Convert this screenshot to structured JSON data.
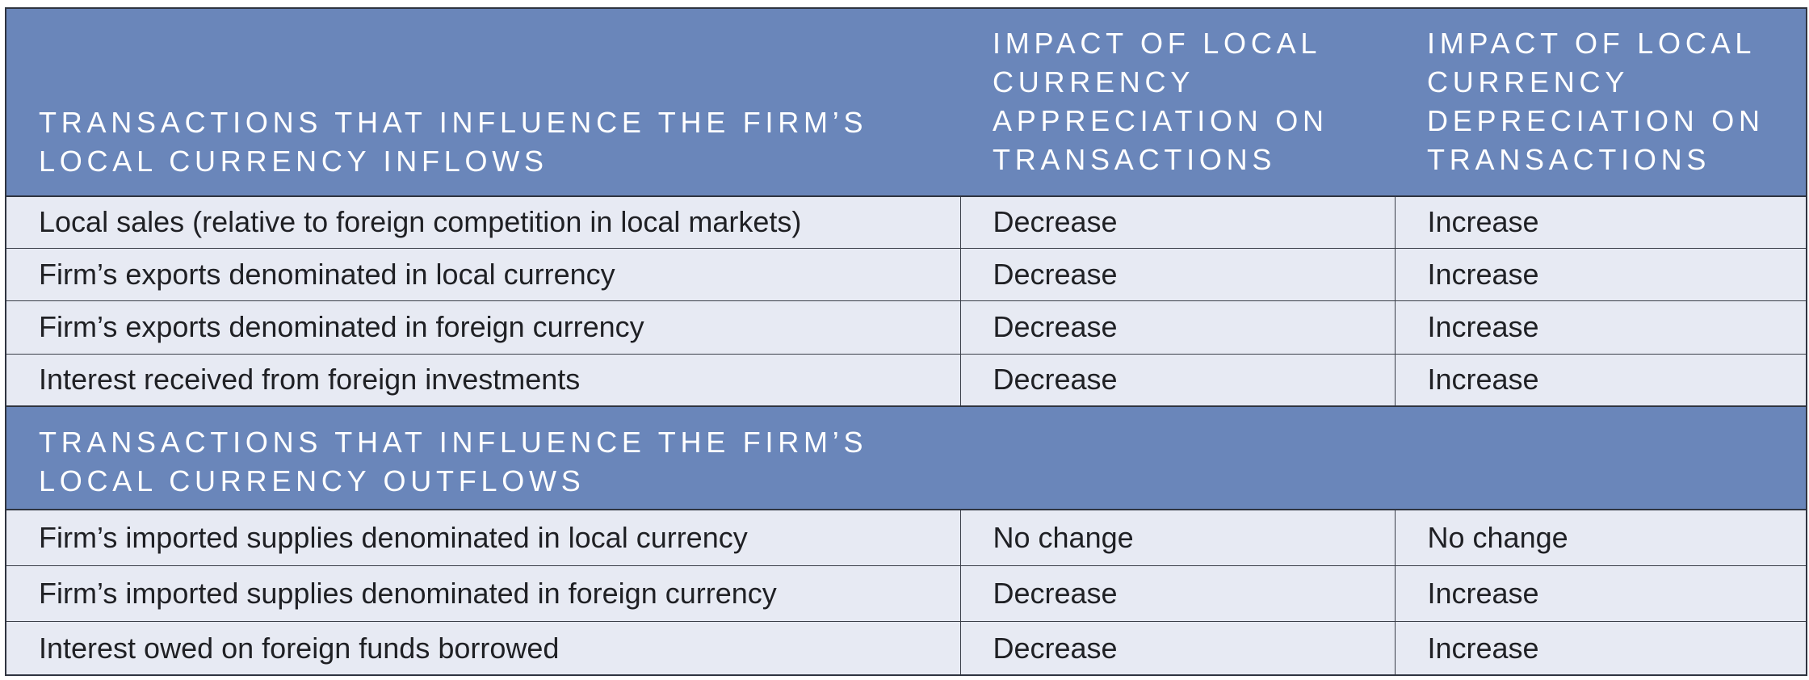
{
  "header": {
    "col1": "Transactions that influence the firm’s local currency inflows",
    "col2": "Impact of local currency appreciation on transactions",
    "col3": "Impact of local currency depreciation on transactions"
  },
  "inflows": [
    {
      "transaction": "Local sales (relative to foreign competition in local markets)",
      "appreciation": "Decrease",
      "depreciation": "Increase"
    },
    {
      "transaction": "Firm’s exports denominated in local currency",
      "appreciation": "Decrease",
      "depreciation": "Increase"
    },
    {
      "transaction": "Firm’s exports denominated in foreign currency",
      "appreciation": "Decrease",
      "depreciation": "Increase"
    },
    {
      "transaction": "Interest received from foreign investments",
      "appreciation": "Decrease",
      "depreciation": "Increase"
    }
  ],
  "outflows_header": "Transactions that influence the firm’s local currency outflows",
  "outflows": [
    {
      "transaction": "Firm’s imported supplies denominated in local currency",
      "appreciation": "No change",
      "depreciation": "No change"
    },
    {
      "transaction": "Firm’s imported supplies denominated in foreign currency",
      "appreciation": "Decrease",
      "depreciation": "Increase"
    },
    {
      "transaction": "Interest owed on foreign funds borrowed",
      "appreciation": "Decrease",
      "depreciation": "Increase"
    }
  ],
  "colors": {
    "header_bg": "#6a86ba",
    "row_bg": "#e7eaf3",
    "border": "#2f3440"
  }
}
